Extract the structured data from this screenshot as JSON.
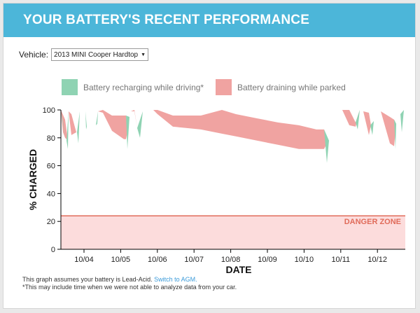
{
  "header": {
    "title": "YOUR BATTERY'S RECENT PERFORMANCE",
    "color": "#4cb6d9"
  },
  "vehicle": {
    "label": "Vehicle:",
    "selected": "2013 MINI Cooper Hardtop"
  },
  "legend": {
    "recharging": {
      "label": "Battery recharging while driving*",
      "color": "#8fd3b3"
    },
    "draining": {
      "label": "Battery draining while parked",
      "color": "#f0a3a1"
    }
  },
  "chart_data": {
    "type": "area",
    "ylabel": "% CHARGED",
    "xlabel": "DATE",
    "ylim": [
      0,
      100
    ],
    "yticks": [
      "0",
      "20",
      "40",
      "60",
      "80",
      "100"
    ],
    "xtick_labels": [
      "10/04",
      "10/05",
      "10/06",
      "10/07",
      "10/08",
      "10/09",
      "10/10",
      "10/11",
      "10/12"
    ],
    "danger_zone": {
      "label": "DANGER ZONE",
      "threshold": 24,
      "line_color": "#e06b5a",
      "fill_color": "#fcdcdc"
    },
    "series": [
      {
        "name": "Battery draining while parked",
        "color": "#f0a3a1",
        "top": [
          [
            0,
            100
          ],
          [
            6,
            93
          ],
          [
            10,
            78
          ],
          [
            11,
            99
          ],
          [
            15,
            97
          ],
          [
            22,
            84
          ],
          [
            25,
            84
          ],
          [
            27,
            99
          ],
          [
            32,
            99
          ],
          [
            35,
            99
          ],
          [
            36,
            86
          ],
          [
            37,
            89
          ],
          [
            39,
            99
          ],
          [
            42,
            100
          ],
          [
            49,
            89
          ],
          [
            52,
            90
          ],
          [
            53,
            99
          ],
          [
            60,
            100
          ],
          [
            73,
            96
          ],
          [
            93,
            96
          ],
          [
            95,
            84
          ],
          [
            98,
            95
          ],
          [
            100,
            99
          ],
          [
            105,
            100
          ],
          [
            109,
            87
          ],
          [
            113,
            86
          ],
          [
            117,
            99
          ],
          [
            120,
            99
          ],
          [
            124,
            97
          ],
          [
            130,
            98
          ],
          [
            132,
            100
          ],
          [
            138,
            100
          ],
          [
            160,
            96
          ],
          [
            180,
            96
          ],
          [
            200,
            96
          ],
          [
            230,
            100
          ],
          [
            250,
            97
          ],
          [
            280,
            94
          ],
          [
            310,
            91
          ],
          [
            340,
            89
          ],
          [
            365,
            86
          ],
          [
            376,
            86
          ],
          [
            380,
            76
          ],
          [
            383,
            78
          ],
          [
            385,
            94
          ],
          [
            394,
            94
          ],
          [
            396,
            100
          ],
          [
            402,
            100
          ],
          [
            412,
            100
          ],
          [
            421,
            91
          ],
          [
            427,
            100
          ],
          [
            432,
            99
          ],
          [
            440,
            98
          ],
          [
            443,
            89
          ],
          [
            447,
            92
          ],
          [
            450,
            99
          ],
          [
            457,
            99
          ],
          [
            470,
            95
          ],
          [
            476,
            93
          ],
          [
            479,
            90
          ],
          [
            482,
            99
          ],
          [
            485,
            97
          ],
          [
            487,
            91
          ],
          [
            490,
            100
          ],
          [
            492,
            100
          ]
        ],
        "bottom": [
          [
            0,
            100
          ],
          [
            3,
            84
          ],
          [
            6,
            80
          ],
          [
            10,
            78
          ],
          [
            11,
            99
          ],
          [
            15,
            82
          ],
          [
            22,
            84
          ],
          [
            25,
            84
          ],
          [
            27,
            99
          ],
          [
            32,
            99
          ],
          [
            35,
            99
          ],
          [
            36,
            86
          ],
          [
            37,
            89
          ],
          [
            39,
            99
          ],
          [
            42,
            100
          ],
          [
            49,
            89
          ],
          [
            52,
            90
          ],
          [
            53,
            99
          ],
          [
            60,
            98
          ],
          [
            73,
            85
          ],
          [
            90,
            79
          ],
          [
            93,
            79
          ],
          [
            95,
            84
          ],
          [
            98,
            95
          ],
          [
            100,
            99
          ],
          [
            105,
            99
          ],
          [
            109,
            87
          ],
          [
            113,
            86
          ],
          [
            117,
            99
          ],
          [
            120,
            99
          ],
          [
            124,
            97
          ],
          [
            130,
            98
          ],
          [
            132,
            100
          ],
          [
            138,
            97
          ],
          [
            160,
            88
          ],
          [
            180,
            87
          ],
          [
            200,
            86
          ],
          [
            230,
            83
          ],
          [
            250,
            81
          ],
          [
            280,
            78
          ],
          [
            310,
            75
          ],
          [
            340,
            72
          ],
          [
            365,
            72
          ],
          [
            376,
            72
          ],
          [
            380,
            76
          ],
          [
            383,
            78
          ],
          [
            385,
            94
          ],
          [
            394,
            94
          ],
          [
            396,
            100
          ],
          [
            402,
            100
          ],
          [
            412,
            89
          ],
          [
            421,
            88
          ],
          [
            427,
            100
          ],
          [
            432,
            99
          ],
          [
            440,
            82
          ],
          [
            443,
            89
          ],
          [
            447,
            92
          ],
          [
            450,
            99
          ],
          [
            457,
            99
          ],
          [
            470,
            76
          ],
          [
            476,
            74
          ],
          [
            479,
            90
          ],
          [
            482,
            99
          ],
          [
            485,
            97
          ],
          [
            487,
            91
          ],
          [
            490,
            100
          ],
          [
            492,
            100
          ]
        ]
      },
      {
        "name": "Battery recharging while driving*",
        "color": "#8fd3b3",
        "segments": [
          [
            [
              0,
              100
            ],
            [
              3,
              92
            ],
            [
              6,
              80
            ]
          ],
          [
            [
              8,
              78
            ],
            [
              10,
              72
            ],
            [
              11,
              99
            ]
          ],
          [
            [
              23,
              84
            ],
            [
              25,
              76
            ],
            [
              27,
              99
            ]
          ],
          [
            [
              35,
              99
            ],
            [
              36,
              86
            ],
            [
              37,
              88
            ]
          ],
          [
            [
              50,
              89
            ],
            [
              52,
              90
            ],
            [
              53,
              99
            ]
          ],
          [
            [
              93,
              96
            ],
            [
              95,
              72
            ],
            [
              98,
              95
            ]
          ],
          [
            [
              109,
              87
            ],
            [
              113,
              80
            ],
            [
              117,
              99
            ]
          ],
          [
            [
              376,
              86
            ],
            [
              380,
              62
            ],
            [
              383,
              78
            ]
          ],
          [
            [
              421,
              91
            ],
            [
              424,
              86
            ],
            [
              427,
              100
            ]
          ],
          [
            [
              442,
              89
            ],
            [
              445,
              82
            ],
            [
              447,
              92
            ]
          ],
          [
            [
              476,
              93
            ],
            [
              478,
              72
            ],
            [
              479,
              90
            ]
          ],
          [
            [
              485,
              97
            ],
            [
              487,
              84
            ],
            [
              490,
              100
            ]
          ]
        ]
      }
    ]
  },
  "footnotes": {
    "line1_text": "This graph assumes your battery is Lead-Acid.",
    "line1_link": "Switch to AGM.",
    "line2": "*This may include time when we were not able to analyze data from your car."
  }
}
